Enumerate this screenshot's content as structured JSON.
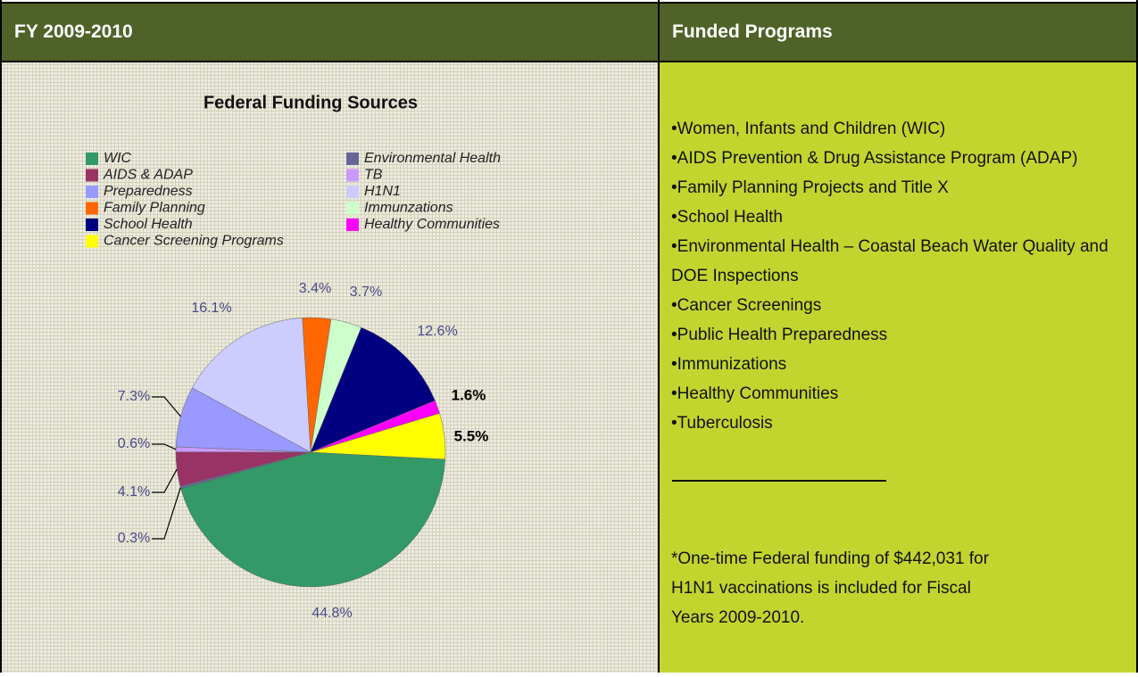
{
  "left": {
    "header": "FY 2009-2010"
  },
  "right": {
    "header": "Funded Programs",
    "items": [
      "Women, Infants and Children (WIC)",
      "AIDS Prevention & Drug Assistance Program (ADAP)",
      "Family Planning Projects and Title X",
      "School Health",
      "Environmental Health – Coastal Beach Water Quality and DOE Inspections",
      "Cancer Screenings",
      "Public Health Preparedness",
      "Immunizations",
      "Healthy Communities",
      "Tuberculosis"
    ],
    "note": "*One-time Federal funding of $442,031 for H1N1 vaccinations is included for Fiscal Years 2009-2010."
  },
  "chart_data": {
    "type": "pie",
    "title": "Federal Funding Sources",
    "categories": [
      "WIC",
      "Environmental Health",
      "AIDS & ADAP",
      "TB",
      "Preparedness",
      "H1N1",
      "Family Planning",
      "Immunzations",
      "School Health",
      "Healthy Communities",
      "Cancer Screening Programs"
    ],
    "values": [
      44.8,
      0.3,
      4.1,
      0.6,
      7.3,
      16.1,
      3.4,
      3.7,
      12.6,
      1.6,
      5.5
    ],
    "value_labels": [
      "44.8%",
      "0.3%",
      "4.1%",
      "0.6%",
      "7.3%",
      "16.1%",
      "3.4%",
      "3.7%",
      "12.6%",
      "1.6%",
      "5.5%"
    ],
    "colors": [
      "#339966",
      "#666699",
      "#993366",
      "#cc99ff",
      "#9999ff",
      "#ccccff",
      "#ff6600",
      "#ccffcc",
      "#000080",
      "#ff00ff",
      "#ffff00"
    ]
  }
}
